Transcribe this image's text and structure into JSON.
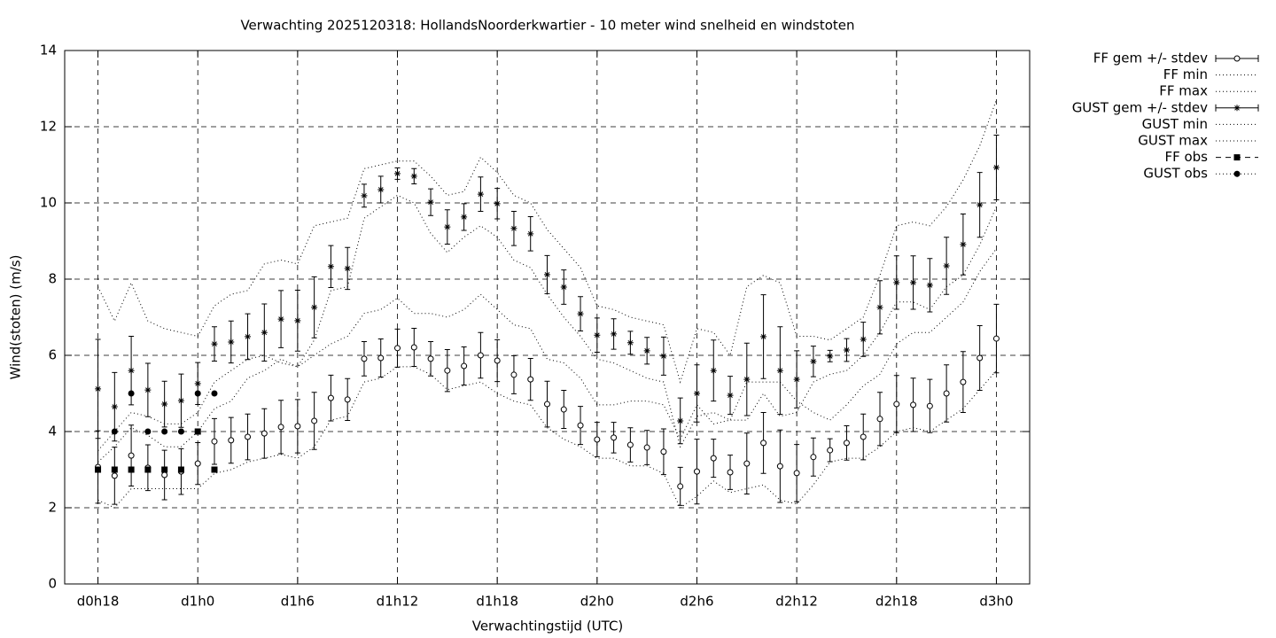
{
  "chart_data": {
    "type": "errorbar-line",
    "title": "Verwachting 2025120318: HollandsNoorderkwartier - 10 meter wind snelheid en windstoten",
    "xlabel": "Verwachtingstijd (UTC)",
    "ylabel": "Wind(stoten) (m/s)",
    "xlim": [
      16,
      74
    ],
    "ylim": [
      0,
      14
    ],
    "xticks": [
      {
        "value": 18,
        "label": "d0h18"
      },
      {
        "value": 24,
        "label": "d1h0"
      },
      {
        "value": 30,
        "label": "d1h6"
      },
      {
        "value": 36,
        "label": "d1h12"
      },
      {
        "value": 42,
        "label": "d1h18"
      },
      {
        "value": 48,
        "label": "d2h0"
      },
      {
        "value": 54,
        "label": "d2h6"
      },
      {
        "value": 60,
        "label": "d2h12"
      },
      {
        "value": 66,
        "label": "d2h18"
      },
      {
        "value": 72,
        "label": "d3h0"
      }
    ],
    "yticks": [
      0,
      2,
      4,
      6,
      8,
      10,
      12,
      14
    ],
    "grid": true,
    "legend": "outside-right",
    "x": [
      18,
      19,
      20,
      21,
      22,
      23,
      24,
      25,
      26,
      27,
      28,
      29,
      30,
      31,
      32,
      33,
      34,
      35,
      36,
      37,
      38,
      39,
      40,
      41,
      42,
      43,
      44,
      45,
      46,
      47,
      48,
      49,
      50,
      51,
      52,
      53,
      54,
      55,
      56,
      57,
      58,
      59,
      60,
      61,
      62,
      63,
      64,
      65,
      66,
      67,
      68,
      69,
      70,
      71,
      72
    ],
    "series": [
      {
        "name": "FF gem +/- stdev",
        "style": "errorbars-circle",
        "color": "#000000",
        "values": [
          3.07,
          2.84,
          3.37,
          3.05,
          2.86,
          2.95,
          3.16,
          3.74,
          3.77,
          3.86,
          3.95,
          4.12,
          4.14,
          4.28,
          4.88,
          4.84,
          5.91,
          5.93,
          6.19,
          6.21,
          5.91,
          5.6,
          5.72,
          6.0,
          5.86,
          5.49,
          5.37,
          4.72,
          4.58,
          4.16,
          3.79,
          3.84,
          3.65,
          3.58,
          3.47,
          2.56,
          2.95,
          3.3,
          2.93,
          3.16,
          3.7,
          3.09,
          2.91,
          3.33,
          3.51,
          3.7,
          3.86,
          4.33,
          4.72,
          4.7,
          4.67,
          5.0,
          5.3,
          5.93,
          6.44
        ],
        "errors": [
          0.95,
          0.75,
          0.8,
          0.6,
          0.65,
          0.6,
          0.55,
          0.6,
          0.6,
          0.6,
          0.65,
          0.7,
          0.7,
          0.75,
          0.6,
          0.55,
          0.45,
          0.5,
          0.5,
          0.5,
          0.45,
          0.55,
          0.5,
          0.6,
          0.55,
          0.5,
          0.55,
          0.6,
          0.5,
          0.5,
          0.45,
          0.4,
          0.45,
          0.45,
          0.6,
          0.5,
          0.85,
          0.5,
          0.45,
          0.8,
          0.8,
          0.95,
          0.75,
          0.5,
          0.3,
          0.45,
          0.6,
          0.7,
          0.75,
          0.7,
          0.7,
          0.75,
          0.8,
          0.85,
          0.9
        ]
      },
      {
        "name": "FF min",
        "style": "dotted",
        "color": "#000000",
        "values": [
          2.2,
          2.0,
          2.5,
          2.5,
          2.5,
          2.5,
          2.5,
          2.9,
          3.0,
          3.2,
          3.3,
          3.4,
          3.3,
          3.6,
          4.3,
          4.4,
          5.3,
          5.4,
          5.7,
          5.7,
          5.5,
          5.1,
          5.2,
          5.3,
          5.0,
          4.8,
          4.7,
          4.1,
          3.8,
          3.6,
          3.3,
          3.3,
          3.1,
          3.1,
          2.9,
          2.0,
          2.3,
          2.7,
          2.4,
          2.5,
          2.6,
          2.2,
          2.1,
          2.6,
          3.2,
          3.3,
          3.3,
          3.6,
          4.0,
          4.1,
          4.0,
          4.3,
          4.6,
          5.1,
          5.6
        ]
      },
      {
        "name": "FF max",
        "style": "dotted",
        "color": "#000000",
        "values": [
          3.2,
          3.6,
          4.1,
          3.9,
          3.6,
          3.6,
          4.0,
          4.6,
          4.8,
          5.4,
          5.6,
          5.9,
          5.7,
          6.0,
          6.3,
          6.5,
          7.1,
          7.2,
          7.5,
          7.1,
          7.1,
          7.0,
          7.2,
          7.6,
          7.2,
          6.8,
          6.7,
          5.9,
          5.8,
          5.4,
          4.7,
          4.7,
          4.8,
          4.8,
          4.7,
          3.8,
          4.7,
          4.2,
          4.3,
          5.3,
          5.3,
          5.3,
          4.8,
          4.5,
          4.3,
          4.7,
          5.2,
          5.5,
          6.3,
          6.6,
          6.6,
          7.0,
          7.4,
          8.2,
          8.8
        ]
      },
      {
        "name": "GUST gem +/- stdev",
        "style": "errorbars-star",
        "color": "#000000",
        "values": [
          5.12,
          4.65,
          5.6,
          5.09,
          4.72,
          4.81,
          5.26,
          6.3,
          6.35,
          6.49,
          6.6,
          6.95,
          6.91,
          7.26,
          8.33,
          8.28,
          10.19,
          10.35,
          10.77,
          10.7,
          10.02,
          9.37,
          9.63,
          10.23,
          9.98,
          9.33,
          9.19,
          8.12,
          7.79,
          7.09,
          6.53,
          6.56,
          6.33,
          6.12,
          5.98,
          4.28,
          5.0,
          5.6,
          4.95,
          5.37,
          6.49,
          5.6,
          5.37,
          5.84,
          5.98,
          6.14,
          6.42,
          7.26,
          7.91,
          7.91,
          7.84,
          8.35,
          8.91,
          9.95,
          10.93
        ],
        "errors": [
          1.3,
          0.9,
          0.9,
          0.7,
          0.6,
          0.7,
          0.55,
          0.45,
          0.55,
          0.6,
          0.75,
          0.75,
          0.8,
          0.8,
          0.55,
          0.55,
          0.3,
          0.35,
          0.15,
          0.2,
          0.35,
          0.45,
          0.35,
          0.45,
          0.4,
          0.45,
          0.45,
          0.5,
          0.45,
          0.45,
          0.45,
          0.4,
          0.3,
          0.35,
          0.5,
          0.6,
          0.75,
          0.8,
          0.5,
          0.95,
          1.1,
          1.15,
          0.75,
          0.4,
          0.15,
          0.3,
          0.45,
          0.7,
          0.7,
          0.7,
          0.7,
          0.75,
          0.8,
          0.85,
          0.85
        ]
      },
      {
        "name": "GUST min",
        "style": "dotted",
        "color": "#000000",
        "values": [
          3.5,
          4.0,
          4.5,
          4.4,
          4.2,
          4.2,
          4.5,
          5.3,
          5.6,
          5.9,
          6.0,
          5.8,
          5.7,
          6.4,
          7.7,
          7.8,
          9.6,
          9.9,
          10.2,
          10.0,
          9.2,
          8.7,
          9.1,
          9.4,
          9.1,
          8.5,
          8.3,
          7.6,
          7.0,
          6.5,
          5.9,
          5.8,
          5.6,
          5.4,
          5.3,
          3.6,
          4.4,
          4.5,
          4.3,
          4.3,
          5.0,
          4.4,
          4.5,
          5.3,
          5.5,
          5.6,
          6.0,
          6.6,
          7.4,
          7.4,
          7.2,
          7.8,
          8.1,
          8.9,
          9.9
        ]
      },
      {
        "name": "GUST max",
        "style": "dotted",
        "color": "#000000",
        "values": [
          7.8,
          6.9,
          7.9,
          6.9,
          6.7,
          6.6,
          6.5,
          7.3,
          7.6,
          7.7,
          8.4,
          8.5,
          8.4,
          9.4,
          9.5,
          9.6,
          10.9,
          11.0,
          11.1,
          11.1,
          10.7,
          10.2,
          10.3,
          11.2,
          10.8,
          10.2,
          10.0,
          9.3,
          8.8,
          8.3,
          7.3,
          7.2,
          7.0,
          6.9,
          6.8,
          5.3,
          6.7,
          6.6,
          6.0,
          7.8,
          8.1,
          7.9,
          6.5,
          6.5,
          6.4,
          6.7,
          7.0,
          8.1,
          9.4,
          9.5,
          9.4,
          9.9,
          10.6,
          11.5,
          12.7
        ]
      },
      {
        "name": "FF obs",
        "style": "points-square",
        "color": "#000000",
        "x": [
          18,
          19,
          20,
          21,
          22,
          23,
          24,
          25
        ],
        "values": [
          3,
          3,
          3,
          3,
          3,
          3,
          4,
          3
        ]
      },
      {
        "name": "GUST obs",
        "style": "points-circle",
        "color": "#000000",
        "x": [
          19,
          20,
          21,
          22,
          23,
          24,
          25
        ],
        "values": [
          4,
          5,
          4,
          4,
          4,
          5,
          5
        ]
      }
    ]
  }
}
